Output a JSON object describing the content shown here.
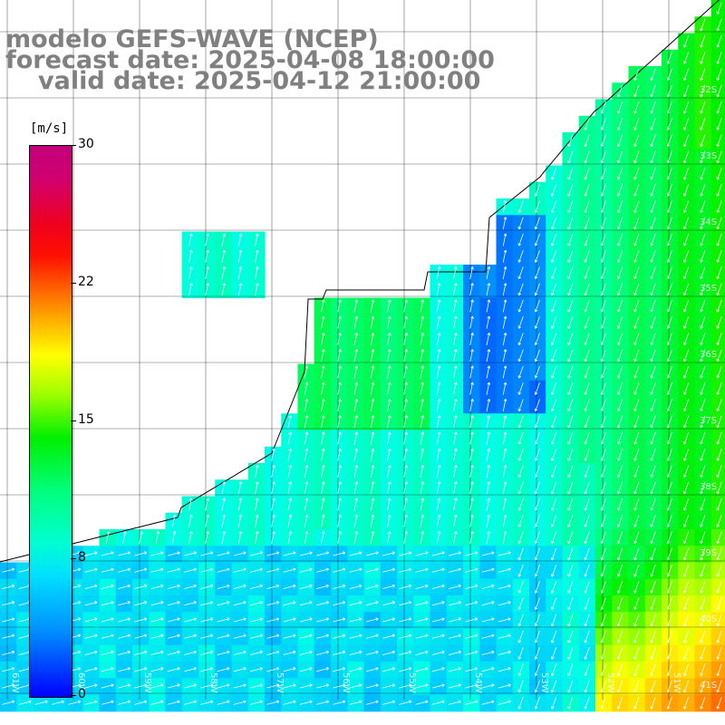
{
  "title": {
    "model": "modelo GEFS-WAVE (NCEP)",
    "forecast": "forecast date: 2025-04-08 18:00:00",
    "valid": "valid date: 2025-04-12 21:00:00"
  },
  "colorbar": {
    "unit": "[m/s]",
    "ticks": [
      "30",
      "22",
      "15",
      "8",
      "0"
    ],
    "tick_values": [
      30,
      22,
      15,
      8,
      0
    ]
  },
  "lat_labels": [
    "32S",
    "33S",
    "34S",
    "35S",
    "36S",
    "37S",
    "38S",
    "39S",
    "40S",
    "41S"
  ],
  "lon_labels": [
    "61W",
    "60W",
    "59W",
    "58W",
    "57W",
    "56W",
    "55W",
    "54W",
    "53W",
    "52W",
    "51W"
  ],
  "colors": {
    "land": "#ffffff",
    "grid": "#000000",
    "arrow": "#ffffff"
  }
}
